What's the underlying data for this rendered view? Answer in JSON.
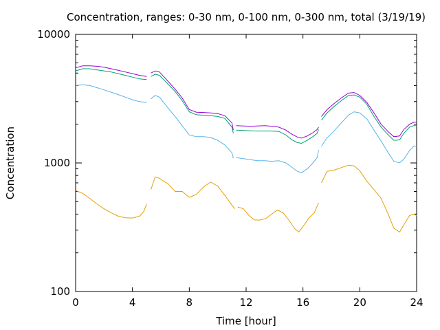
{
  "chart_data": {
    "type": "line",
    "title": "Concentration, ranges: 0-30 nm, 0-100 nm, 0-300 nm, total (3/19/19)",
    "xlabel": "Time [hour]",
    "ylabel": "Concentration",
    "xlim": [
      0,
      24
    ],
    "ylim": [
      100,
      10000
    ],
    "yscale": "log",
    "grid": false,
    "legend": "none",
    "x_ticks": [
      {
        "value": 0,
        "label": "0"
      },
      {
        "value": 4,
        "label": "4"
      },
      {
        "value": 8,
        "label": "8"
      },
      {
        "value": 12,
        "label": "12"
      },
      {
        "value": 16,
        "label": "16"
      },
      {
        "value": 20,
        "label": "20"
      },
      {
        "value": 24,
        "label": "24"
      }
    ],
    "y_ticks": [
      {
        "value": 100,
        "label": "100"
      },
      {
        "value": 1000,
        "label": "1000"
      },
      {
        "value": 10000,
        "label": "10000"
      }
    ],
    "series": [
      {
        "color": "#e69f00",
        "segments": [
          {
            "x": [
              0,
              0.5,
              1,
              1.5,
              2,
              2.5,
              3,
              3.5,
              4,
              4.5,
              4.8,
              5.0
            ],
            "y": [
              610,
              580,
              530,
              480,
              440,
              410,
              385,
              375,
              373,
              385,
              420,
              480
            ]
          },
          {
            "x": [
              5.3,
              5.6,
              5.9,
              6.2,
              6.5,
              7.0,
              7.5,
              8.0,
              8.5,
              9.0,
              9.5,
              10.0,
              10.5,
              11.0,
              11.2
            ],
            "y": [
              620,
              780,
              760,
              720,
              690,
              600,
              600,
              540,
              570,
              650,
              710,
              660,
              560,
              470,
              440
            ]
          },
          {
            "x": [
              11.4,
              11.8,
              12.2,
              12.6,
              13.0,
              13.4,
              13.8,
              14.2,
              14.6,
              15.0,
              15.4,
              15.7,
              16.0,
              16.4,
              16.8,
              17.1
            ],
            "y": [
              455,
              440,
              390,
              360,
              360,
              370,
              400,
              430,
              410,
              360,
              310,
              290,
              320,
              370,
              410,
              490
            ]
          },
          {
            "x": [
              17.3,
              17.7,
              18.2,
              18.7,
              19.2,
              19.6,
              20.0,
              20.5,
              21.0,
              21.5,
              22.0,
              22.4,
              22.8,
              23.1,
              23.5,
              23.8,
              24.0
            ],
            "y": [
              700,
              860,
              880,
              920,
              960,
              950,
              870,
              720,
              620,
              530,
              400,
              310,
              290,
              330,
              390,
              400,
              390
            ]
          }
        ]
      },
      {
        "color": "#56b4e9",
        "segments": [
          {
            "x": [
              0,
              0.5,
              1,
              1.5,
              2,
              2.5,
              3,
              3.5,
              4,
              4.5,
              5.0
            ],
            "y": [
              4000,
              4050,
              4000,
              3850,
              3700,
              3550,
              3400,
              3250,
              3100,
              3000,
              2950
            ]
          },
          {
            "x": [
              5.3,
              5.6,
              5.9,
              6.2,
              6.6,
              7.0,
              7.5,
              8.0,
              8.5,
              9.0,
              9.5,
              10.0,
              10.5,
              11.0,
              11.1
            ],
            "y": [
              3150,
              3350,
              3250,
              2950,
              2600,
              2300,
              1950,
              1650,
              1600,
              1600,
              1580,
              1500,
              1380,
              1200,
              1090
            ]
          },
          {
            "x": [
              11.3,
              11.8,
              12.3,
              12.8,
              13.3,
              13.8,
              14.3,
              14.8,
              15.2,
              15.6,
              15.9,
              16.3,
              16.7,
              17.0,
              17.1
            ],
            "y": [
              1100,
              1080,
              1060,
              1040,
              1040,
              1030,
              1040,
              1000,
              930,
              860,
              840,
              900,
              1000,
              1100,
              1260
            ]
          },
          {
            "x": [
              17.3,
              17.7,
              18.2,
              18.7,
              19.2,
              19.6,
              20.0,
              20.5,
              21.0,
              21.5,
              22.0,
              22.4,
              22.8,
              23.1,
              23.5,
              23.8,
              24.0
            ],
            "y": [
              1350,
              1570,
              1780,
              2050,
              2350,
              2500,
              2450,
              2200,
              1800,
              1480,
              1200,
              1030,
              1000,
              1070,
              1250,
              1350,
              1350
            ]
          }
        ]
      },
      {
        "color": "#009e73",
        "segments": [
          {
            "x": [
              0,
              0.5,
              1,
              1.5,
              2,
              2.5,
              3,
              3.5,
              4,
              4.5,
              5.0
            ],
            "y": [
              5200,
              5400,
              5400,
              5300,
              5200,
              5100,
              4950,
              4800,
              4650,
              4500,
              4450
            ]
          },
          {
            "x": [
              5.3,
              5.6,
              5.9,
              6.2,
              6.6,
              7.0,
              7.5,
              8.0,
              8.5,
              9.0,
              9.5,
              10.0,
              10.5,
              11.0,
              11.1
            ],
            "y": [
              4700,
              4900,
              4800,
              4450,
              4000,
              3600,
              3050,
              2500,
              2370,
              2350,
              2330,
              2300,
              2220,
              1900,
              1700
            ]
          },
          {
            "x": [
              11.3,
              11.8,
              12.3,
              12.8,
              13.3,
              13.8,
              14.3,
              14.8,
              15.2,
              15.6,
              15.9,
              16.3,
              16.7,
              17.0,
              17.1
            ],
            "y": [
              1800,
              1790,
              1780,
              1770,
              1770,
              1770,
              1760,
              1650,
              1520,
              1440,
              1420,
              1500,
              1600,
              1700,
              1820
            ]
          },
          {
            "x": [
              17.3,
              17.7,
              18.2,
              18.7,
              19.2,
              19.6,
              20.0,
              20.5,
              21.0,
              21.5,
              22.0,
              22.4,
              22.8,
              23.1,
              23.5,
              23.8,
              24.0
            ],
            "y": [
              2150,
              2450,
              2750,
              3050,
              3350,
              3380,
              3250,
              2850,
              2300,
              1900,
              1650,
              1500,
              1510,
              1700,
              1900,
              1950,
              1950
            ]
          }
        ]
      },
      {
        "color": "#9400d3",
        "segments": [
          {
            "x": [
              0,
              0.5,
              1,
              1.5,
              2,
              2.5,
              3,
              3.5,
              4,
              4.5,
              5.0
            ],
            "y": [
              5500,
              5700,
              5700,
              5650,
              5550,
              5400,
              5250,
              5100,
              4950,
              4800,
              4700
            ]
          },
          {
            "x": [
              5.3,
              5.6,
              5.9,
              6.2,
              6.6,
              7.0,
              7.5,
              8.0,
              8.5,
              9.0,
              9.5,
              10.0,
              10.5,
              11.0,
              11.1
            ],
            "y": [
              5000,
              5200,
              5100,
              4700,
              4200,
              3750,
              3200,
              2600,
              2480,
              2470,
              2450,
              2420,
              2330,
              2050,
              1800
            ]
          },
          {
            "x": [
              11.3,
              11.8,
              12.3,
              12.8,
              13.3,
              13.8,
              14.3,
              14.8,
              15.2,
              15.6,
              15.9,
              16.3,
              16.7,
              17.0,
              17.1
            ],
            "y": [
              1950,
              1940,
              1930,
              1940,
              1950,
              1930,
              1900,
              1800,
              1680,
              1590,
              1560,
              1620,
              1720,
              1820,
              1900
            ]
          },
          {
            "x": [
              17.3,
              17.7,
              18.2,
              18.7,
              19.2,
              19.6,
              20.0,
              20.5,
              21.0,
              21.5,
              22.0,
              22.4,
              22.8,
              23.1,
              23.5,
              23.8,
              24.0
            ],
            "y": [
              2300,
              2600,
              2900,
              3200,
              3500,
              3530,
              3350,
              2950,
              2450,
              2000,
              1750,
              1600,
              1620,
              1820,
              2000,
              2070,
              2080
            ]
          }
        ]
      }
    ]
  }
}
